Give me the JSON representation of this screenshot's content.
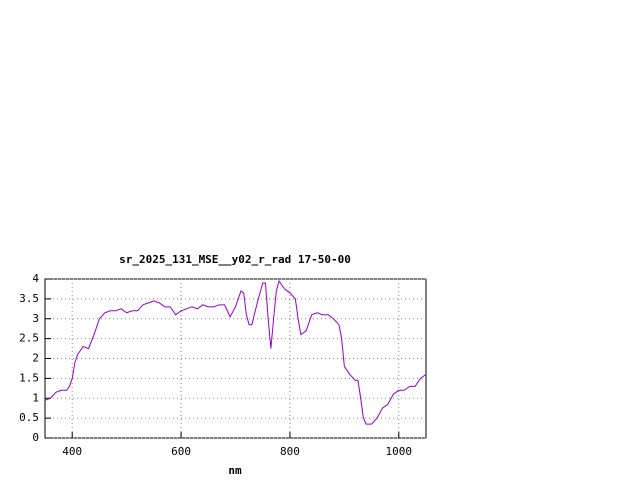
{
  "chart_data": {
    "type": "line",
    "title": "sr_2025_131_MSE__y02_r_rad 17-50-00",
    "xlabel": "nm",
    "x": [
      350,
      360,
      370,
      380,
      390,
      395,
      400,
      405,
      410,
      420,
      430,
      440,
      450,
      460,
      470,
      480,
      490,
      500,
      510,
      520,
      530,
      540,
      550,
      560,
      570,
      580,
      590,
      600,
      610,
      620,
      630,
      640,
      650,
      660,
      670,
      680,
      690,
      700,
      710,
      715,
      720,
      725,
      730,
      740,
      750,
      755,
      760,
      765,
      770,
      775,
      780,
      790,
      800,
      810,
      815,
      820,
      830,
      840,
      850,
      860,
      870,
      880,
      890,
      895,
      900,
      910,
      920,
      925,
      930,
      935,
      940,
      950,
      960,
      970,
      980,
      990,
      1000,
      1010,
      1020,
      1030,
      1040,
      1050
    ],
    "series": [
      {
        "color": "#9400d3",
        "values": [
          0.95,
          1.0,
          1.15,
          1.2,
          1.2,
          1.3,
          1.5,
          1.9,
          2.1,
          2.3,
          2.25,
          2.6,
          3.0,
          3.15,
          3.2,
          3.2,
          3.25,
          3.15,
          3.2,
          3.2,
          3.35,
          3.4,
          3.45,
          3.4,
          3.3,
          3.3,
          3.1,
          3.2,
          3.25,
          3.3,
          3.25,
          3.35,
          3.3,
          3.3,
          3.35,
          3.35,
          3.05,
          3.3,
          3.7,
          3.65,
          3.1,
          2.85,
          2.85,
          3.4,
          3.9,
          3.9,
          3.0,
          2.25,
          3.0,
          3.7,
          3.95,
          3.75,
          3.65,
          3.5,
          3.0,
          2.6,
          2.7,
          3.1,
          3.15,
          3.1,
          3.1,
          3.0,
          2.85,
          2.5,
          1.8,
          1.6,
          1.45,
          1.45,
          1.0,
          0.5,
          0.35,
          0.35,
          0.5,
          0.75,
          0.85,
          1.1,
          1.2,
          1.2,
          1.3,
          1.3,
          1.5,
          1.6
        ]
      }
    ],
    "xlim": [
      350,
      1050
    ],
    "xticks": [
      400,
      600,
      800,
      1000
    ],
    "ylim": [
      0,
      4
    ],
    "yticks": [
      0,
      0.5,
      1,
      1.5,
      2,
      2.5,
      3,
      3.5,
      4
    ],
    "grid": true
  }
}
